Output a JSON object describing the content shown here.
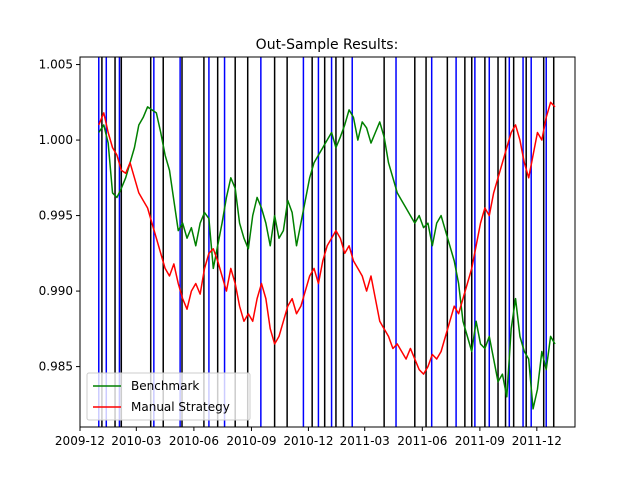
{
  "chart_data": {
    "type": "line",
    "title": "Out-Sample Results:",
    "xlabel": "",
    "ylabel": "",
    "xlim": [
      "2009-12-01",
      "2012-01-31"
    ],
    "ylim": [
      0.981,
      1.0055
    ],
    "x_ticks": [
      "2009-12",
      "2010-03",
      "2010-06",
      "2010-09",
      "2010-12",
      "2011-03",
      "2011-06",
      "2011-09",
      "2011-12"
    ],
    "y_ticks": [
      "0.985",
      "0.990",
      "0.995",
      "1.000",
      "1.005"
    ],
    "legend": {
      "placement": "lower-left"
    },
    "grid": false,
    "series": [
      {
        "name": "Benchmark",
        "color": "#008000",
        "points": [
          [
            "2009-12-31",
            1.0005
          ],
          [
            "2010-01-08",
            1.001
          ],
          [
            "2010-01-15",
            0.9998
          ],
          [
            "2010-01-22",
            0.9965
          ],
          [
            "2010-01-29",
            0.9962
          ],
          [
            "2010-02-05",
            0.9968
          ],
          [
            "2010-02-12",
            0.9975
          ],
          [
            "2010-02-19",
            0.9985
          ],
          [
            "2010-02-26",
            0.9995
          ],
          [
            "2010-03-05",
            1.001
          ],
          [
            "2010-03-12",
            1.0015
          ],
          [
            "2010-03-19",
            1.0022
          ],
          [
            "2010-03-26",
            1.002
          ],
          [
            "2010-04-02",
            1.0018
          ],
          [
            "2010-04-09",
            1.0005
          ],
          [
            "2010-04-16",
            0.999
          ],
          [
            "2010-04-23",
            0.998
          ],
          [
            "2010-04-30",
            0.996
          ],
          [
            "2010-05-07",
            0.994
          ],
          [
            "2010-05-14",
            0.9945
          ],
          [
            "2010-05-21",
            0.9935
          ],
          [
            "2010-05-28",
            0.9942
          ],
          [
            "2010-06-04",
            0.993
          ],
          [
            "2010-06-11",
            0.9945
          ],
          [
            "2010-06-18",
            0.9952
          ],
          [
            "2010-06-25",
            0.9948
          ],
          [
            "2010-07-02",
            0.9915
          ],
          [
            "2010-07-09",
            0.993
          ],
          [
            "2010-07-16",
            0.9945
          ],
          [
            "2010-07-23",
            0.9962
          ],
          [
            "2010-07-30",
            0.9975
          ],
          [
            "2010-08-06",
            0.9968
          ],
          [
            "2010-08-13",
            0.9945
          ],
          [
            "2010-08-20",
            0.9935
          ],
          [
            "2010-08-27",
            0.9928
          ],
          [
            "2010-09-03",
            0.995
          ],
          [
            "2010-09-10",
            0.9962
          ],
          [
            "2010-09-17",
            0.9955
          ],
          [
            "2010-09-24",
            0.9945
          ],
          [
            "2010-10-01",
            0.993
          ],
          [
            "2010-10-08",
            0.995
          ],
          [
            "2010-10-15",
            0.9935
          ],
          [
            "2010-10-22",
            0.994
          ],
          [
            "2010-10-29",
            0.996
          ],
          [
            "2010-11-05",
            0.9952
          ],
          [
            "2010-11-12",
            0.993
          ],
          [
            "2010-11-19",
            0.9945
          ],
          [
            "2010-11-26",
            0.996
          ],
          [
            "2010-12-03",
            0.9975
          ],
          [
            "2010-12-10",
            0.9985
          ],
          [
            "2010-12-17",
            0.999
          ],
          [
            "2010-12-24",
            0.9995
          ],
          [
            "2010-12-31",
            1.0
          ],
          [
            "2011-01-07",
            1.0005
          ],
          [
            "2011-01-14",
            0.9995
          ],
          [
            "2011-01-21",
            1.0002
          ],
          [
            "2011-01-28",
            1.001
          ],
          [
            "2011-02-04",
            1.002
          ],
          [
            "2011-02-11",
            1.0015
          ],
          [
            "2011-02-18",
            1.0
          ],
          [
            "2011-02-25",
            1.0012
          ],
          [
            "2011-03-04",
            1.0008
          ],
          [
            "2011-03-11",
            0.9998
          ],
          [
            "2011-03-18",
            1.0005
          ],
          [
            "2011-03-25",
            1.0012
          ],
          [
            "2011-04-01",
            1.0002
          ],
          [
            "2011-04-08",
            0.9985
          ],
          [
            "2011-04-15",
            0.9975
          ],
          [
            "2011-04-22",
            0.9965
          ],
          [
            "2011-04-29",
            0.996
          ],
          [
            "2011-05-06",
            0.9955
          ],
          [
            "2011-05-13",
            0.995
          ],
          [
            "2011-05-20",
            0.9945
          ],
          [
            "2011-05-27",
            0.995
          ],
          [
            "2011-06-03",
            0.9942
          ],
          [
            "2011-06-10",
            0.9945
          ],
          [
            "2011-06-17",
            0.993
          ],
          [
            "2011-06-24",
            0.9945
          ],
          [
            "2011-07-01",
            0.995
          ],
          [
            "2011-07-08",
            0.994
          ],
          [
            "2011-07-15",
            0.993
          ],
          [
            "2011-07-22",
            0.992
          ],
          [
            "2011-07-29",
            0.9905
          ],
          [
            "2011-08-05",
            0.988
          ],
          [
            "2011-08-12",
            0.987
          ],
          [
            "2011-08-19",
            0.986
          ],
          [
            "2011-08-26",
            0.988
          ],
          [
            "2011-09-02",
            0.9865
          ],
          [
            "2011-09-09",
            0.9862
          ],
          [
            "2011-09-16",
            0.987
          ],
          [
            "2011-09-23",
            0.9855
          ],
          [
            "2011-09-30",
            0.984
          ],
          [
            "2011-10-07",
            0.9845
          ],
          [
            "2011-10-14",
            0.983
          ],
          [
            "2011-10-21",
            0.9875
          ],
          [
            "2011-10-28",
            0.9895
          ],
          [
            "2011-11-04",
            0.987
          ],
          [
            "2011-11-11",
            0.986
          ],
          [
            "2011-11-18",
            0.9855
          ],
          [
            "2011-11-25",
            0.9822
          ],
          [
            "2011-12-02",
            0.9835
          ],
          [
            "2011-12-09",
            0.986
          ],
          [
            "2011-12-16",
            0.9848
          ],
          [
            "2011-12-23",
            0.987
          ],
          [
            "2011-12-30",
            0.9865
          ]
        ]
      },
      {
        "name": "Manual Strategy",
        "color": "#ff0000",
        "points": [
          [
            "2009-12-31",
            1.001
          ],
          [
            "2010-01-08",
            1.0018
          ],
          [
            "2010-01-15",
            1.0005
          ],
          [
            "2010-01-22",
            0.9995
          ],
          [
            "2010-01-29",
            0.999
          ],
          [
            "2010-02-05",
            0.998
          ],
          [
            "2010-02-12",
            0.9978
          ],
          [
            "2010-02-19",
            0.9985
          ],
          [
            "2010-02-26",
            0.9975
          ],
          [
            "2010-03-05",
            0.9965
          ],
          [
            "2010-03-12",
            0.996
          ],
          [
            "2010-03-19",
            0.9955
          ],
          [
            "2010-03-26",
            0.9945
          ],
          [
            "2010-04-02",
            0.9935
          ],
          [
            "2010-04-09",
            0.9925
          ],
          [
            "2010-04-16",
            0.9915
          ],
          [
            "2010-04-23",
            0.991
          ],
          [
            "2010-04-30",
            0.9918
          ],
          [
            "2010-05-07",
            0.9905
          ],
          [
            "2010-05-14",
            0.9895
          ],
          [
            "2010-05-21",
            0.9888
          ],
          [
            "2010-05-28",
            0.99
          ],
          [
            "2010-06-04",
            0.9905
          ],
          [
            "2010-06-11",
            0.9898
          ],
          [
            "2010-06-18",
            0.9915
          ],
          [
            "2010-06-25",
            0.9925
          ],
          [
            "2010-07-02",
            0.9928
          ],
          [
            "2010-07-09",
            0.992
          ],
          [
            "2010-07-16",
            0.991
          ],
          [
            "2010-07-23",
            0.99
          ],
          [
            "2010-07-30",
            0.9915
          ],
          [
            "2010-08-06",
            0.9905
          ],
          [
            "2010-08-13",
            0.989
          ],
          [
            "2010-08-20",
            0.988
          ],
          [
            "2010-08-27",
            0.9885
          ],
          [
            "2010-09-03",
            0.988
          ],
          [
            "2010-09-10",
            0.9895
          ],
          [
            "2010-09-17",
            0.9905
          ],
          [
            "2010-09-24",
            0.9895
          ],
          [
            "2010-10-01",
            0.9875
          ],
          [
            "2010-10-08",
            0.9865
          ],
          [
            "2010-10-15",
            0.987
          ],
          [
            "2010-10-22",
            0.988
          ],
          [
            "2010-10-29",
            0.989
          ],
          [
            "2010-11-05",
            0.9895
          ],
          [
            "2010-11-12",
            0.9885
          ],
          [
            "2010-11-19",
            0.989
          ],
          [
            "2010-11-26",
            0.99
          ],
          [
            "2010-12-03",
            0.991
          ],
          [
            "2010-12-10",
            0.9915
          ],
          [
            "2010-12-17",
            0.9905
          ],
          [
            "2010-12-24",
            0.992
          ],
          [
            "2010-12-31",
            0.993
          ],
          [
            "2011-01-07",
            0.9935
          ],
          [
            "2011-01-14",
            0.994
          ],
          [
            "2011-01-21",
            0.9935
          ],
          [
            "2011-01-28",
            0.9925
          ],
          [
            "2011-02-04",
            0.993
          ],
          [
            "2011-02-11",
            0.992
          ],
          [
            "2011-02-18",
            0.9915
          ],
          [
            "2011-02-25",
            0.991
          ],
          [
            "2011-03-04",
            0.99
          ],
          [
            "2011-03-11",
            0.991
          ],
          [
            "2011-03-18",
            0.9895
          ],
          [
            "2011-03-25",
            0.988
          ],
          [
            "2011-04-01",
            0.9875
          ],
          [
            "2011-04-08",
            0.987
          ],
          [
            "2011-04-15",
            0.9862
          ],
          [
            "2011-04-22",
            0.9865
          ],
          [
            "2011-04-29",
            0.986
          ],
          [
            "2011-05-06",
            0.9855
          ],
          [
            "2011-05-13",
            0.9862
          ],
          [
            "2011-05-20",
            0.9855
          ],
          [
            "2011-05-27",
            0.9848
          ],
          [
            "2011-06-03",
            0.9845
          ],
          [
            "2011-06-10",
            0.985
          ],
          [
            "2011-06-17",
            0.9858
          ],
          [
            "2011-06-24",
            0.9855
          ],
          [
            "2011-07-01",
            0.986
          ],
          [
            "2011-07-08",
            0.987
          ],
          [
            "2011-07-15",
            0.988
          ],
          [
            "2011-07-22",
            0.989
          ],
          [
            "2011-07-29",
            0.9885
          ],
          [
            "2011-08-05",
            0.9895
          ],
          [
            "2011-08-12",
            0.9905
          ],
          [
            "2011-08-19",
            0.9915
          ],
          [
            "2011-08-26",
            0.993
          ],
          [
            "2011-09-02",
            0.9945
          ],
          [
            "2011-09-09",
            0.9955
          ],
          [
            "2011-09-16",
            0.995
          ],
          [
            "2011-09-23",
            0.9965
          ],
          [
            "2011-09-30",
            0.9975
          ],
          [
            "2011-10-07",
            0.9985
          ],
          [
            "2011-10-14",
            0.9995
          ],
          [
            "2011-10-21",
            1.0005
          ],
          [
            "2011-10-28",
            1.001
          ],
          [
            "2011-11-04",
            1.0
          ],
          [
            "2011-11-11",
            0.9985
          ],
          [
            "2011-11-18",
            0.9975
          ],
          [
            "2011-11-25",
            0.999
          ],
          [
            "2011-12-02",
            1.0005
          ],
          [
            "2011-12-09",
            1.0
          ],
          [
            "2011-12-16",
            1.0015
          ],
          [
            "2011-12-23",
            1.0025
          ],
          [
            "2011-12-30",
            1.0022
          ]
        ]
      }
    ],
    "vertical_lines": [
      {
        "x": "2009-12-31",
        "color": "#0000ff"
      },
      {
        "x": "2010-01-05",
        "color": "#000000"
      },
      {
        "x": "2010-01-12",
        "color": "#0000ff"
      },
      {
        "x": "2010-01-26",
        "color": "#000000"
      },
      {
        "x": "2010-02-02",
        "color": "#0000ff"
      },
      {
        "x": "2010-02-05",
        "color": "#000000"
      },
      {
        "x": "2010-03-24",
        "color": "#000000"
      },
      {
        "x": "2010-03-29",
        "color": "#0000ff"
      },
      {
        "x": "2010-04-13",
        "color": "#000000"
      },
      {
        "x": "2010-05-10",
        "color": "#0000ff"
      },
      {
        "x": "2010-05-13",
        "color": "#000000"
      },
      {
        "x": "2010-06-17",
        "color": "#000000"
      },
      {
        "x": "2010-06-25",
        "color": "#0000ff"
      },
      {
        "x": "2010-07-09",
        "color": "#000000"
      },
      {
        "x": "2010-07-20",
        "color": "#0000ff"
      },
      {
        "x": "2010-08-06",
        "color": "#000000"
      },
      {
        "x": "2010-08-26",
        "color": "#000000"
      },
      {
        "x": "2010-09-16",
        "color": "#0000ff"
      },
      {
        "x": "2010-10-08",
        "color": "#000000"
      },
      {
        "x": "2010-10-28",
        "color": "#000000"
      },
      {
        "x": "2010-11-23",
        "color": "#0000ff"
      },
      {
        "x": "2010-12-07",
        "color": "#000000"
      },
      {
        "x": "2010-12-17",
        "color": "#0000ff"
      },
      {
        "x": "2010-12-27",
        "color": "#000000"
      },
      {
        "x": "2011-01-07",
        "color": "#0000ff"
      },
      {
        "x": "2011-01-14",
        "color": "#000000"
      },
      {
        "x": "2011-01-26",
        "color": "#000000"
      },
      {
        "x": "2011-02-09",
        "color": "#0000ff"
      },
      {
        "x": "2011-04-01",
        "color": "#000000"
      },
      {
        "x": "2011-04-20",
        "color": "#0000ff"
      },
      {
        "x": "2011-05-20",
        "color": "#000000"
      },
      {
        "x": "2011-06-07",
        "color": "#000000"
      },
      {
        "x": "2011-06-16",
        "color": "#0000ff"
      },
      {
        "x": "2011-07-11",
        "color": "#000000"
      },
      {
        "x": "2011-07-25",
        "color": "#0000ff"
      },
      {
        "x": "2011-08-08",
        "color": "#000000"
      },
      {
        "x": "2011-08-19",
        "color": "#000000"
      },
      {
        "x": "2011-08-24",
        "color": "#0000ff"
      },
      {
        "x": "2011-09-09",
        "color": "#000000"
      },
      {
        "x": "2011-09-16",
        "color": "#0000ff"
      },
      {
        "x": "2011-09-30",
        "color": "#000000"
      },
      {
        "x": "2011-10-12",
        "color": "#000000"
      },
      {
        "x": "2011-10-18",
        "color": "#0000ff"
      },
      {
        "x": "2011-10-25",
        "color": "#000000"
      },
      {
        "x": "2011-11-09",
        "color": "#0000ff"
      },
      {
        "x": "2011-11-14",
        "color": "#000000"
      },
      {
        "x": "2011-11-22",
        "color": "#0000ff"
      },
      {
        "x": "2011-12-12",
        "color": "#000000"
      },
      {
        "x": "2011-12-16",
        "color": "#0000ff"
      },
      {
        "x": "2011-12-28",
        "color": "#000000"
      }
    ]
  }
}
